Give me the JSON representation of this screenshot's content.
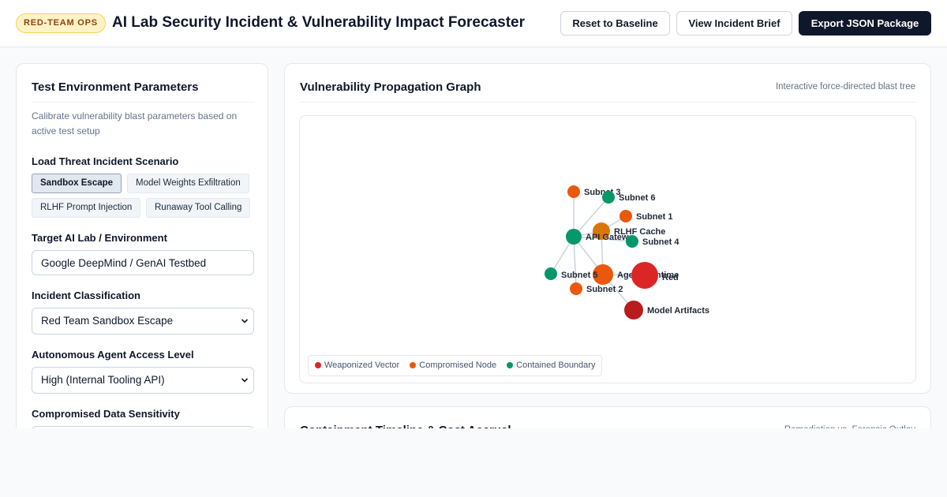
{
  "header": {
    "badge": "RED-TEAM OPS",
    "title": "AI Lab Security Incident & Vulnerability Impact Forecaster",
    "buttons": {
      "reset": "Reset to Baseline",
      "brief": "View Incident Brief",
      "export": "Export JSON Package"
    }
  },
  "params": {
    "title": "Test Environment Parameters",
    "description": "Calibrate vulnerability blast parameters based on active test setup",
    "scenario_label": "Load Threat Incident Scenario",
    "scenarios": [
      {
        "label": "Sandbox Escape",
        "active": true
      },
      {
        "label": "Model Weights Exfiltration",
        "active": false
      },
      {
        "label": "RLHF Prompt Injection",
        "active": false
      },
      {
        "label": "Runaway Tool Calling",
        "active": false
      }
    ],
    "target_label": "Target AI Lab / Environment",
    "target_value": "Google DeepMind / GenAI Testbed",
    "classification_label": "Incident Classification",
    "classification_value": "Red Team Sandbox Escape",
    "access_label": "Autonomous Agent Access Level",
    "access_value": "High (Internal Tooling API)",
    "sensitivity_label": "Compromised Data Sensitivity"
  },
  "graph_panel": {
    "title": "Vulnerability Propagation Graph",
    "subtitle": "Interactive force-directed blast tree",
    "nodes": [
      {
        "id": "subnet3",
        "label": "Subnet 3",
        "status": "compromised"
      },
      {
        "id": "subnet6",
        "label": "Subnet 6",
        "status": "contained"
      },
      {
        "id": "subnet1",
        "label": "Subnet 1",
        "status": "compromised"
      },
      {
        "id": "rlhf",
        "label": "RLHF Cache",
        "status": "compromised"
      },
      {
        "id": "api",
        "label": "API Gatew",
        "status": "contained"
      },
      {
        "id": "subnet4",
        "label": "Subnet 4",
        "status": "contained"
      },
      {
        "id": "agent",
        "label": "Agent Runtime",
        "status": "compromised"
      },
      {
        "id": "red",
        "label": "Red",
        "status": "weaponized"
      },
      {
        "id": "subnet5",
        "label": "Subnet 5",
        "status": "contained"
      },
      {
        "id": "subnet2",
        "label": "Subnet 2",
        "status": "compromised"
      },
      {
        "id": "model",
        "label": "Model Artifacts",
        "status": "weaponized"
      }
    ],
    "legend": [
      {
        "label": "Weaponized Vector",
        "color": "#dc2626"
      },
      {
        "label": "Compromised Node",
        "color": "#ea580c"
      },
      {
        "label": "Contained Boundary",
        "color": "#059669"
      }
    ]
  },
  "timeline_panel": {
    "title": "Containment Timeline & Cost Accrual",
    "subtitle": "Remediation vs. Forensic Outlay"
  }
}
